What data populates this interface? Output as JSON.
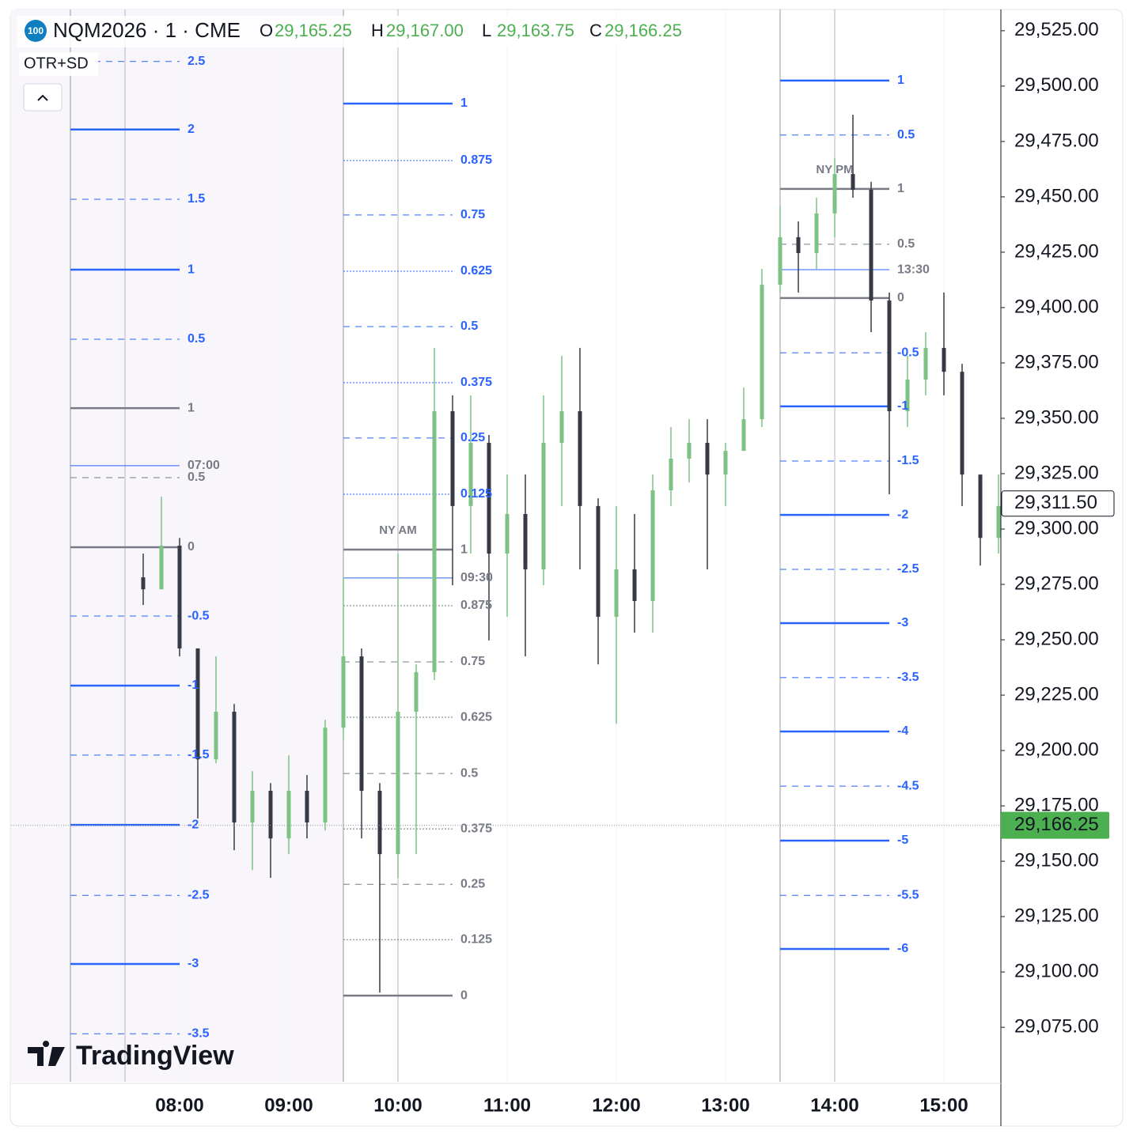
{
  "chart_data": {
    "type": "candlestick",
    "badge": "100",
    "symbol": "NQM2026 · 1 · CME",
    "indicator": "OTR+SD",
    "watermark": "TradingView",
    "ohlc": [
      {
        "key": "O",
        "value": 29165.25,
        "label": "29,165.25"
      },
      {
        "key": "H",
        "value": 29167.0,
        "label": "29,167.00"
      },
      {
        "key": "L",
        "value": 29163.75,
        "label": "29,163.75"
      },
      {
        "key": "C",
        "value": 29166.25,
        "label": "29,166.25"
      }
    ],
    "xlim": [
      387.4,
      931.3
    ],
    "xticks": [
      {
        "value": 480,
        "label": "08:00"
      },
      {
        "value": 540,
        "label": "09:00"
      },
      {
        "value": 600,
        "label": "10:00"
      },
      {
        "value": 660,
        "label": "11:00"
      },
      {
        "value": 720,
        "label": "12:00"
      },
      {
        "value": 780,
        "label": "13:00"
      },
      {
        "value": 840,
        "label": "14:00"
      },
      {
        "value": 900,
        "label": "15:00"
      }
    ],
    "ylim": [
      29050.4,
      29534.6
    ],
    "yticks": [
      {
        "value": 29075,
        "label": "29,075.00"
      },
      {
        "value": 29100,
        "label": "29,100.00"
      },
      {
        "value": 29125,
        "label": "29,125.00"
      },
      {
        "value": 29150,
        "label": "29,150.00"
      },
      {
        "value": 29175,
        "label": "29,175.00"
      },
      {
        "value": 29200,
        "label": "29,200.00"
      },
      {
        "value": 29225,
        "label": "29,225.00"
      },
      {
        "value": 29250,
        "label": "29,250.00"
      },
      {
        "value": 29275,
        "label": "29,275.00"
      },
      {
        "value": 29300,
        "label": "29,300.00"
      },
      {
        "value": 29325,
        "label": "29,325.00"
      },
      {
        "value": 29350,
        "label": "29,350.00"
      },
      {
        "value": 29375,
        "label": "29,375.00"
      },
      {
        "value": 29400,
        "label": "29,400.00"
      },
      {
        "value": 29425,
        "label": "29,425.00"
      },
      {
        "value": 29450,
        "label": "29,450.00"
      },
      {
        "value": 29475,
        "label": "29,475.00"
      },
      {
        "value": 29500,
        "label": "29,500.00"
      },
      {
        "value": 29525,
        "label": "29,525.00"
      }
    ],
    "grid": true,
    "up_color": "#7cc283",
    "down_color": "#363a45",
    "x": [
      460,
      470,
      480,
      490,
      500,
      510,
      520,
      530,
      540,
      550,
      560,
      570,
      580,
      590,
      600,
      610,
      620,
      630,
      640,
      650,
      660,
      670,
      680,
      690,
      700,
      710,
      720,
      730,
      740,
      750,
      760,
      770,
      780,
      790,
      800,
      810,
      820,
      830,
      840,
      850,
      860,
      870,
      880,
      890,
      900,
      910,
      920,
      930
    ],
    "open": [
      29278.2,
      29272.8,
      29292.5,
      29246.1,
      29196.0,
      29217.5,
      29167.5,
      29181.8,
      29160.3,
      29181.8,
      29167.5,
      29210.3,
      29242.5,
      29181.8,
      29153.2,
      29217.5,
      29235.4,
      29353.2,
      29310.4,
      29338.9,
      29288.9,
      29306.8,
      29281.8,
      29338.9,
      29353.2,
      29310.4,
      29260.4,
      29281.8,
      29267.5,
      29317.5,
      29331.8,
      29338.9,
      29324.6,
      29335.3,
      29349.6,
      29410.3,
      29431.8,
      29424.6,
      29442.5,
      29460.3,
      29453.2,
      29403.2,
      29353.2,
      29367.5,
      29381.8,
      29371.0,
      29324.6,
      29296.0
    ],
    "high": [
      29288.9,
      29314.6,
      29296.0,
      29246.1,
      29242.5,
      29221.0,
      29190.7,
      29185.3,
      29197.8,
      29188.9,
      29213.9,
      29278.2,
      29246.1,
      29185.3,
      29288.9,
      29238.9,
      29381.8,
      29360.4,
      29360.4,
      29342.5,
      29324.6,
      29324.6,
      29360.4,
      29378.2,
      29381.8,
      29313.9,
      29310.4,
      29306.8,
      29324.6,
      29346.0,
      29349.6,
      29349.6,
      29338.9,
      29363.9,
      29417.5,
      29446.0,
      29438.9,
      29449.6,
      29467.5,
      29487.1,
      29456.8,
      29406.8,
      29378.2,
      29388.9,
      29406.8,
      29374.6,
      29324.6,
      29324.6
    ],
    "low": [
      29265.7,
      29272.8,
      29242.5,
      29169.3,
      29194.3,
      29155.0,
      29146.0,
      29142.5,
      29153.2,
      29160.3,
      29163.9,
      29205.0,
      29160.3,
      29090.7,
      29142.5,
      29153.2,
      29231.8,
      29274.6,
      29288.9,
      29249.7,
      29260.4,
      29242.5,
      29274.6,
      29310.4,
      29281.8,
      29238.9,
      29212.1,
      29253.2,
      29253.2,
      29310.4,
      29321.0,
      29281.8,
      29310.4,
      29335.3,
      29346.0,
      29406.8,
      29406.8,
      29417.5,
      29431.8,
      29449.6,
      29388.9,
      29315.7,
      29346.0,
      29360.4,
      29360.4,
      29310.4,
      29283.5,
      29288.9
    ],
    "close": [
      29272.8,
      29292.5,
      29246.1,
      29196.0,
      29217.5,
      29167.5,
      29181.8,
      29160.3,
      29181.8,
      29167.5,
      29210.3,
      29242.5,
      29181.8,
      29153.2,
      29217.5,
      29235.4,
      29353.2,
      29310.4,
      29338.9,
      29288.9,
      29306.8,
      29281.8,
      29338.9,
      29353.2,
      29310.4,
      29260.4,
      29281.8,
      29267.5,
      29317.5,
      29331.8,
      29338.9,
      29324.6,
      29335.3,
      29349.6,
      29410.3,
      29431.8,
      29424.6,
      29442.5,
      29460.3,
      29453.2,
      29403.2,
      29353.2,
      29367.5,
      29381.8,
      29371.0,
      29324.6,
      29296.0,
      29310.4
    ],
    "sessions": [
      {
        "time_label": "07:00",
        "start": 420,
        "end": 480,
        "open_price": 29328.6,
        "open_color": "#2962ff",
        "level_sets": [
          {
            "color": "#2962ff",
            "levels": [
              2.5,
              2,
              1.5,
              1,
              0.5,
              -0.5,
              -1,
              -1.5,
              -2,
              -2.5,
              -3,
              -3.5
            ],
            "prices": [
              29511.1,
              29480.4,
              29448.9,
              29417.1,
              29385.7,
              29260.7,
              29229.3,
              29197.9,
              29166.4,
              29134.6,
              29103.6,
              29072.1
            ]
          },
          {
            "color": "#787b86",
            "levels": [
              1,
              0.5,
              0
            ],
            "prices": [
              29354.6,
              29323.2,
              29291.8
            ]
          }
        ]
      },
      {
        "name": "NY AM",
        "time_label": "09:30",
        "start": 570,
        "end": 630,
        "open_price": 29277.9,
        "open_color": "#2962ff",
        "level_sets": [
          {
            "color": "#2962ff",
            "levels": [
              1,
              0.875,
              0.75,
              0.625,
              0.5,
              0.375,
              0.25,
              0.125
            ],
            "prices": [
              29492.1,
              29466.4,
              29441.8,
              29416.4,
              29391.4,
              29366.1,
              29341.1,
              29315.7
            ]
          },
          {
            "color": "#787b86",
            "levels": [
              1,
              0.875,
              0.75,
              0.625,
              0.5,
              0.375,
              0.25,
              0.125,
              0
            ],
            "prices": [
              29290.7,
              29265.4,
              29240.0,
              29215.0,
              29189.6,
              29164.6,
              29139.6,
              29114.6,
              29089.3
            ]
          }
        ]
      },
      {
        "name": "NY PM",
        "time_label": "13:30",
        "start": 810,
        "end": 870,
        "open_price": 29417.1,
        "open_color": "#2962ff",
        "level_sets": [
          {
            "color": "#2962ff",
            "levels": [
              1,
              0.5,
              -0.5,
              -1,
              -1.5,
              -2,
              -2.5,
              -3,
              -3.5,
              -4,
              -4.5,
              -5,
              -5.5,
              -6
            ],
            "prices": [
              29502.5,
              29477.9,
              29379.6,
              29355.4,
              29330.7,
              29306.4,
              29281.8,
              29257.5,
              29232.9,
              29208.6,
              29183.9,
              29159.3,
              29134.6,
              29110.4
            ]
          },
          {
            "color": "#787b86",
            "levels": [
              1,
              0.5,
              0
            ],
            "prices": [
              29453.6,
              29428.6,
              29404.3
            ]
          }
        ]
      }
    ],
    "last_price": {
      "value": 29166.25,
      "label": "29,166.25",
      "color": "#4caf50"
    },
    "cursor_price": {
      "value": 29311.5,
      "label": "29,311.50"
    }
  }
}
